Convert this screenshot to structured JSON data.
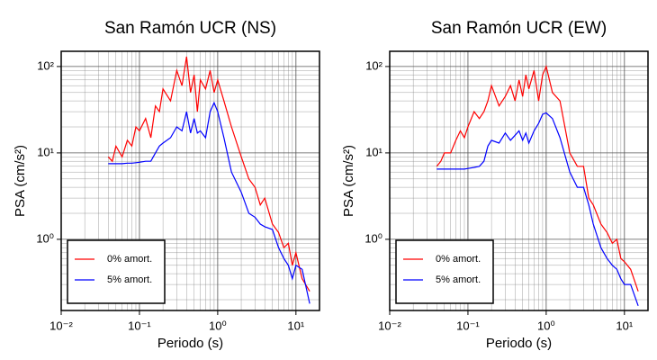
{
  "chart_data": [
    {
      "type": "line",
      "title": "San Ramón UCR (NS)",
      "xlabel": "Periodo (s)",
      "ylabel": "PSA (cm/s²)",
      "log_x": true,
      "log_y": true,
      "grid": true,
      "legend": "lower left",
      "xlim": [
        0.01,
        20
      ],
      "ylim": [
        0.15,
        150
      ],
      "xticks": [
        {
          "value": 0.01,
          "label": "10⁻²"
        },
        {
          "value": 0.1,
          "label": "10⁻¹"
        },
        {
          "value": 1,
          "label": "10⁰"
        },
        {
          "value": 10,
          "label": "10¹"
        }
      ],
      "yticks": [
        {
          "value": 1,
          "label": "10⁰"
        },
        {
          "value": 10,
          "label": "10¹"
        },
        {
          "value": 100,
          "label": "10²"
        }
      ],
      "x": [
        0.04,
        0.045,
        0.05,
        0.06,
        0.07,
        0.08,
        0.09,
        0.1,
        0.12,
        0.14,
        0.16,
        0.18,
        0.2,
        0.25,
        0.3,
        0.35,
        0.4,
        0.45,
        0.5,
        0.55,
        0.6,
        0.7,
        0.8,
        0.9,
        1.0,
        1.2,
        1.5,
        2.0,
        2.5,
        3.0,
        3.5,
        4,
        5,
        6,
        7,
        8,
        9,
        10,
        12,
        15
      ],
      "series": [
        {
          "name": "0% amort.",
          "color": "#ff0000",
          "values": [
            9,
            8,
            12,
            9,
            14,
            12,
            20,
            18,
            25,
            15,
            35,
            30,
            55,
            40,
            90,
            60,
            130,
            50,
            80,
            30,
            70,
            55,
            90,
            50,
            70,
            40,
            20,
            9,
            5,
            4,
            2.5,
            3,
            1.5,
            1.2,
            0.8,
            0.9,
            0.5,
            0.7,
            0.35,
            0.25
          ]
        },
        {
          "name": "5% amort.",
          "color": "#0000ff",
          "values": [
            7.5,
            7.5,
            7.5,
            7.5,
            7.6,
            7.6,
            7.7,
            7.8,
            8,
            8,
            10,
            12,
            13,
            15,
            20,
            18,
            30,
            17,
            25,
            17,
            18,
            15,
            30,
            38,
            30,
            15,
            6,
            3.5,
            2,
            1.8,
            1.5,
            1.4,
            1.3,
            0.8,
            0.6,
            0.5,
            0.35,
            0.5,
            0.45,
            0.18
          ]
        }
      ]
    },
    {
      "type": "line",
      "title": "San Ramón UCR (EW)",
      "xlabel": "Periodo (s)",
      "ylabel": "PSA (cm/s²)",
      "log_x": true,
      "log_y": true,
      "grid": true,
      "legend": "lower left",
      "xlim": [
        0.01,
        20
      ],
      "ylim": [
        0.15,
        150
      ],
      "xticks": [
        {
          "value": 0.01,
          "label": "10⁻²"
        },
        {
          "value": 0.1,
          "label": "10⁻¹"
        },
        {
          "value": 1,
          "label": "10⁰"
        },
        {
          "value": 10,
          "label": "10¹"
        }
      ],
      "yticks": [
        {
          "value": 1,
          "label": "10⁰"
        },
        {
          "value": 10,
          "label": "10¹"
        },
        {
          "value": 100,
          "label": "10²"
        }
      ],
      "x": [
        0.04,
        0.045,
        0.05,
        0.06,
        0.07,
        0.08,
        0.09,
        0.1,
        0.12,
        0.14,
        0.16,
        0.18,
        0.2,
        0.25,
        0.3,
        0.35,
        0.4,
        0.45,
        0.5,
        0.55,
        0.6,
        0.7,
        0.8,
        0.9,
        1.0,
        1.2,
        1.5,
        2.0,
        2.5,
        3.0,
        3.5,
        4,
        5,
        6,
        7,
        8,
        9,
        10,
        12,
        15
      ],
      "series": [
        {
          "name": "0% amort.",
          "color": "#ff0000",
          "values": [
            7,
            8,
            10,
            10,
            14,
            18,
            15,
            20,
            30,
            25,
            30,
            40,
            60,
            35,
            45,
            60,
            40,
            70,
            45,
            80,
            55,
            90,
            40,
            80,
            100,
            50,
            40,
            10,
            7,
            7,
            3,
            2.5,
            1.5,
            1.2,
            0.9,
            1.0,
            0.6,
            0.55,
            0.45,
            0.25
          ]
        },
        {
          "name": "5% amort.",
          "color": "#0000ff",
          "values": [
            6.5,
            6.5,
            6.5,
            6.5,
            6.5,
            6.5,
            6.5,
            6.6,
            6.8,
            7,
            8,
            12,
            14,
            13,
            17,
            14,
            16,
            18,
            14,
            17,
            13,
            18,
            22,
            28,
            29,
            25,
            15,
            6,
            4,
            4,
            2.5,
            1.5,
            0.8,
            0.6,
            0.5,
            0.45,
            0.35,
            0.3,
            0.3,
            0.17
          ]
        }
      ]
    }
  ]
}
